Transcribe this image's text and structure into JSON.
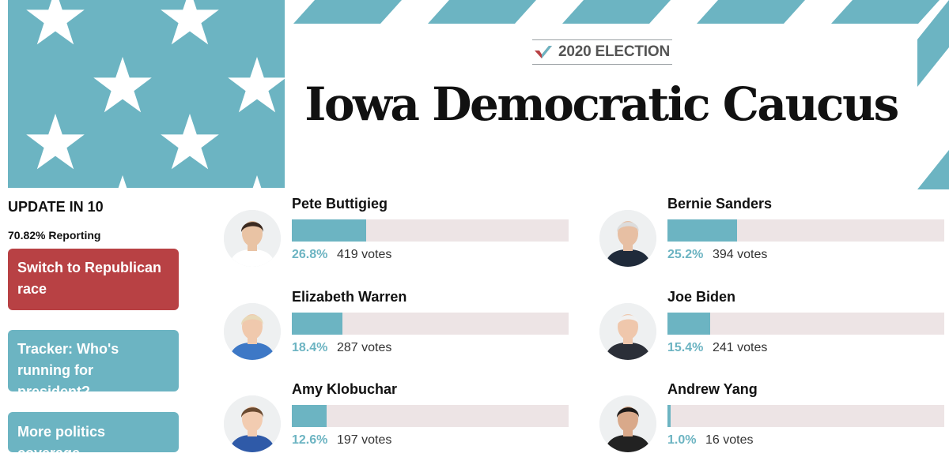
{
  "header": {
    "kicker": "2020 ELECTION",
    "title": "Iowa Democratic Caucus"
  },
  "sidebar": {
    "update_label": "UPDATE IN 10",
    "reporting": "70.82% Reporting",
    "buttons": [
      {
        "label": "Switch to Republican race",
        "color": "#b84144"
      },
      {
        "label": "Tracker: Who's running for president?",
        "color": "#6cb4c2"
      },
      {
        "label": "More politics coverage",
        "color": "#6cb4c2"
      }
    ]
  },
  "colors": {
    "accent": "#6cb4c2",
    "bar_track": "#ede4e5",
    "republican_red": "#b84144"
  },
  "candidates": [
    {
      "name": "Pete Buttigieg",
      "percent_text": "26.8%",
      "percent": 26.8,
      "votes_text": "419 votes"
    },
    {
      "name": "Bernie Sanders",
      "percent_text": "25.2%",
      "percent": 25.2,
      "votes_text": "394 votes"
    },
    {
      "name": "Elizabeth Warren",
      "percent_text": "18.4%",
      "percent": 18.4,
      "votes_text": "287 votes"
    },
    {
      "name": "Joe Biden",
      "percent_text": "15.4%",
      "percent": 15.4,
      "votes_text": "241 votes"
    },
    {
      "name": "Amy Klobuchar",
      "percent_text": "12.6%",
      "percent": 12.6,
      "votes_text": "197 votes"
    },
    {
      "name": "Andrew Yang",
      "percent_text": "1.0%",
      "percent": 1.0,
      "votes_text": "16 votes"
    }
  ]
}
